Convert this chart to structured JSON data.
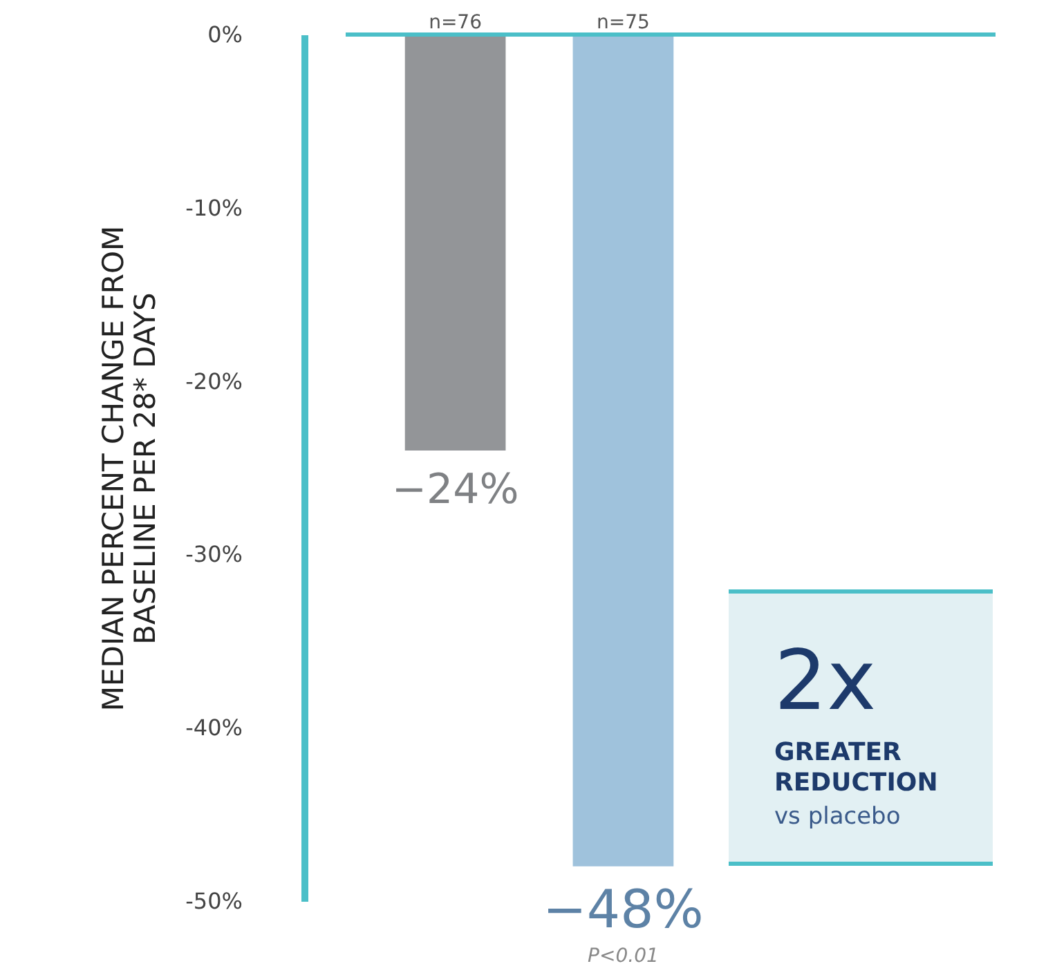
{
  "chart_data": {
    "type": "bar",
    "categories": [
      "n=76",
      "n=75"
    ],
    "values": [
      -24,
      -48
    ],
    "colors": [
      "#939598",
      "#9fc2dc"
    ],
    "value_labels": [
      "−24%",
      "−48%"
    ],
    "ylabel": "MEDIAN PERCENT CHANGE FROM BASELINE PER 28* DAYS",
    "ylim": [
      -50,
      0
    ],
    "yticks": [
      {
        "value": 0,
        "label": "0%"
      },
      {
        "value": -10,
        "label": "-10%"
      },
      {
        "value": -20,
        "label": "-20%"
      },
      {
        "value": -30,
        "label": "-30%"
      },
      {
        "value": -40,
        "label": "-40%"
      },
      {
        "value": -50,
        "label": "-50%"
      }
    ],
    "annotations": [
      "P<0.01",
      "2x",
      "GREATER REDUCTION",
      "vs placebo"
    ],
    "grid": false
  }
}
